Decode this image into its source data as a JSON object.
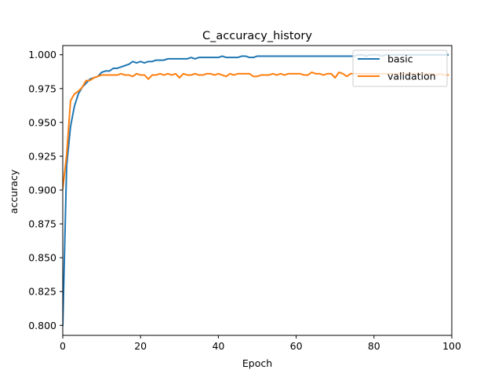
{
  "chart_data": {
    "type": "line",
    "title": "C_accuracy_history",
    "xlabel": "Epoch",
    "ylabel": "accuracy",
    "xlim": [
      0,
      100
    ],
    "ylim": [
      0.7926,
      1.0068
    ],
    "xticks": [
      0,
      20,
      40,
      60,
      80,
      100
    ],
    "xtick_labels": [
      "0",
      "20",
      "40",
      "60",
      "80",
      "100"
    ],
    "yticks": [
      0.8,
      0.825,
      0.85,
      0.875,
      0.9,
      0.925,
      0.95,
      0.975,
      1.0
    ],
    "ytick_labels": [
      "0.800",
      "0.825",
      "0.850",
      "0.875",
      "0.900",
      "0.925",
      "0.950",
      "0.975",
      "1.000"
    ],
    "grid": false,
    "legend_position": "upper right",
    "series": [
      {
        "name": "basic",
        "color": "#1f77b4",
        "x": [
          0,
          1,
          2,
          3,
          4,
          5,
          6,
          7,
          8,
          9,
          10,
          11,
          12,
          13,
          14,
          15,
          16,
          17,
          18,
          19,
          20,
          21,
          22,
          23,
          24,
          25,
          26,
          27,
          28,
          29,
          30,
          31,
          32,
          33,
          34,
          35,
          36,
          37,
          38,
          39,
          40,
          41,
          42,
          43,
          44,
          45,
          46,
          47,
          48,
          49,
          50,
          51,
          52,
          53,
          54,
          55,
          56,
          57,
          58,
          59,
          60,
          61,
          62,
          63,
          64,
          65,
          66,
          67,
          68,
          69,
          70,
          71,
          72,
          73,
          74,
          75,
          76,
          77,
          78,
          79,
          80,
          81,
          82,
          83,
          84,
          85,
          86,
          87,
          88,
          89,
          90,
          91,
          92,
          93,
          94,
          95,
          96,
          97,
          98,
          99
        ],
        "y": [
          0.8,
          0.918,
          0.947,
          0.962,
          0.971,
          0.976,
          0.979,
          0.982,
          0.983,
          0.984,
          0.987,
          0.988,
          0.988,
          0.99,
          0.99,
          0.991,
          0.992,
          0.993,
          0.995,
          0.994,
          0.995,
          0.994,
          0.995,
          0.995,
          0.996,
          0.996,
          0.996,
          0.997,
          0.997,
          0.997,
          0.997,
          0.997,
          0.997,
          0.998,
          0.997,
          0.998,
          0.998,
          0.998,
          0.998,
          0.998,
          0.998,
          0.999,
          0.998,
          0.998,
          0.998,
          0.998,
          0.999,
          0.999,
          0.998,
          0.998,
          0.999,
          0.999,
          0.999,
          0.999,
          0.999,
          0.999,
          0.999,
          0.999,
          0.999,
          0.999,
          0.999,
          0.999,
          0.999,
          0.999,
          0.999,
          0.999,
          0.999,
          0.999,
          0.999,
          0.999,
          0.999,
          0.999,
          0.999,
          0.999,
          0.999,
          0.999,
          1.0,
          1.0,
          0.999,
          1.0,
          1.0,
          1.0,
          0.999,
          1.0,
          1.0,
          1.0,
          1.0,
          1.0,
          1.0,
          1.0,
          1.0,
          1.0,
          1.0,
          1.0,
          1.0,
          1.0,
          1.0,
          1.0,
          1.0,
          1.0
        ]
      },
      {
        "name": "validation",
        "color": "#ff7f0e",
        "x": [
          0,
          1,
          2,
          3,
          4,
          5,
          6,
          7,
          8,
          9,
          10,
          11,
          12,
          13,
          14,
          15,
          16,
          17,
          18,
          19,
          20,
          21,
          22,
          23,
          24,
          25,
          26,
          27,
          28,
          29,
          30,
          31,
          32,
          33,
          34,
          35,
          36,
          37,
          38,
          39,
          40,
          41,
          42,
          43,
          44,
          45,
          46,
          47,
          48,
          49,
          50,
          51,
          52,
          53,
          54,
          55,
          56,
          57,
          58,
          59,
          60,
          61,
          62,
          63,
          64,
          65,
          66,
          67,
          68,
          69,
          70,
          71,
          72,
          73,
          74,
          75,
          76,
          77,
          78,
          79,
          80,
          81,
          82,
          83,
          84,
          85,
          86,
          87,
          88,
          89,
          90,
          91,
          92,
          93,
          94,
          95,
          96,
          97,
          98,
          99
        ],
        "y": [
          0.901,
          0.926,
          0.966,
          0.971,
          0.973,
          0.976,
          0.981,
          0.981,
          0.983,
          0.984,
          0.985,
          0.985,
          0.985,
          0.985,
          0.985,
          0.986,
          0.985,
          0.985,
          0.984,
          0.986,
          0.985,
          0.985,
          0.982,
          0.985,
          0.985,
          0.986,
          0.985,
          0.986,
          0.985,
          0.986,
          0.983,
          0.986,
          0.985,
          0.985,
          0.986,
          0.985,
          0.985,
          0.986,
          0.986,
          0.985,
          0.986,
          0.985,
          0.984,
          0.986,
          0.985,
          0.986,
          0.986,
          0.986,
          0.986,
          0.984,
          0.984,
          0.985,
          0.985,
          0.985,
          0.986,
          0.985,
          0.986,
          0.985,
          0.986,
          0.986,
          0.986,
          0.986,
          0.985,
          0.985,
          0.987,
          0.986,
          0.986,
          0.985,
          0.986,
          0.986,
          0.983,
          0.987,
          0.986,
          0.984,
          0.986,
          0.986,
          0.986,
          0.986,
          0.986,
          0.986,
          0.986,
          0.986,
          0.986,
          0.986,
          0.986,
          0.986,
          0.986,
          0.986,
          0.986,
          0.986,
          0.986,
          0.986,
          0.986,
          0.986,
          0.986,
          0.986,
          0.985,
          0.986,
          0.985,
          0.985
        ]
      }
    ]
  }
}
